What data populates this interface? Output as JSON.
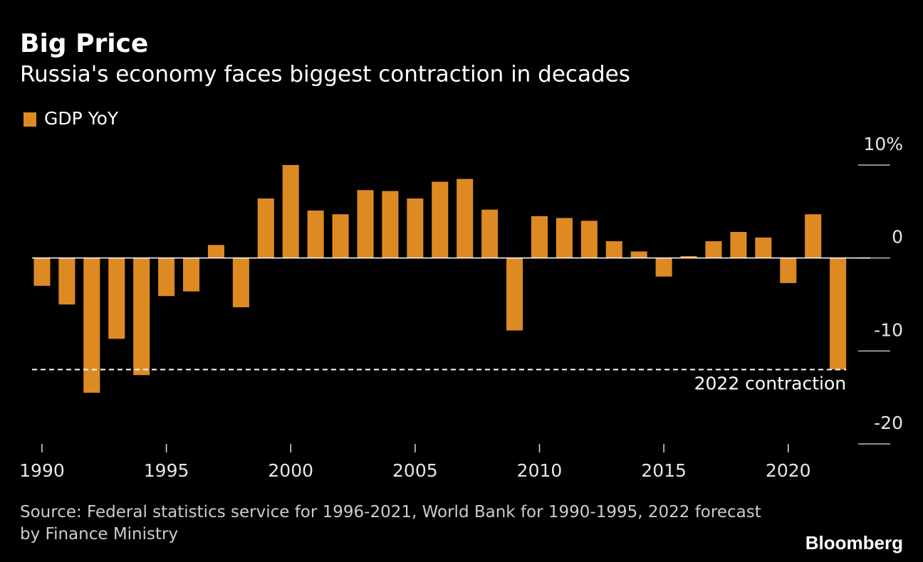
{
  "chart_data": {
    "type": "bar",
    "title": "Big Price",
    "subtitle": "Russia's economy faces biggest contraction in decades",
    "x": [
      1990,
      1991,
      1992,
      1993,
      1994,
      1995,
      1996,
      1997,
      1998,
      1999,
      2000,
      2001,
      2002,
      2003,
      2004,
      2005,
      2006,
      2007,
      2008,
      2009,
      2010,
      2011,
      2012,
      2013,
      2014,
      2015,
      2016,
      2017,
      2018,
      2019,
      2020,
      2021,
      2022
    ],
    "series": [
      {
        "name": "GDP YoY",
        "color": "#de8a23",
        "values": [
          -3.0,
          -5.0,
          -14.5,
          -8.7,
          -12.6,
          -4.1,
          -3.6,
          1.4,
          -5.3,
          6.4,
          10.0,
          5.1,
          4.7,
          7.3,
          7.2,
          6.4,
          8.2,
          8.5,
          5.2,
          -7.8,
          4.5,
          4.3,
          4.0,
          1.8,
          0.7,
          -2.0,
          0.2,
          1.8,
          2.8,
          2.2,
          -2.7,
          4.7,
          -12.0
        ]
      }
    ],
    "xlim": [
      1989.6,
      2023.3
    ],
    "xticks": [
      1990,
      1995,
      2000,
      2005,
      2010,
      2015,
      2020
    ],
    "ylim": [
      -20,
      12
    ],
    "yticks": [
      {
        "value": 10,
        "label": "10%"
      },
      0,
      -10,
      -20
    ],
    "reference_line": {
      "value": -12,
      "label": "2022 contraction"
    },
    "source": "Source: Federal statistics service for 1996-2021, World Bank for 1990-1995, 2022 forecast by Finance Ministry",
    "brand": "Bloomberg"
  }
}
